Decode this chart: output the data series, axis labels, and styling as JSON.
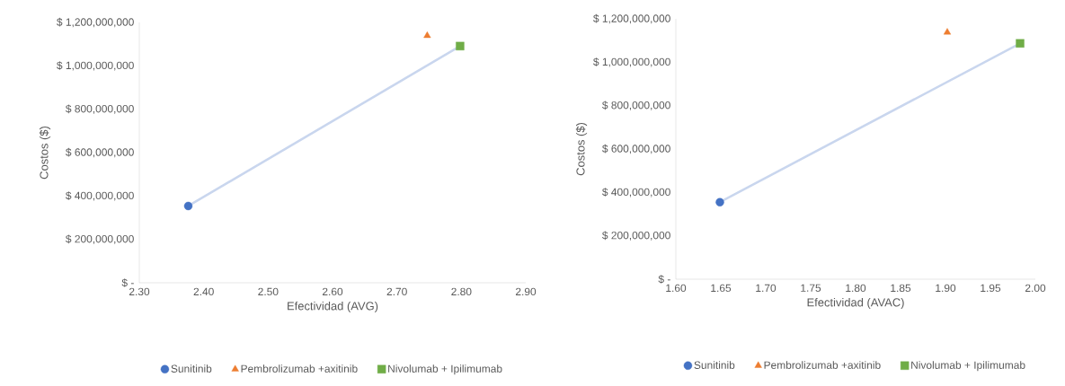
{
  "chart_data": [
    {
      "type": "scatter",
      "xlabel": "Efectividad (AVG)",
      "ylabel": "Costos ($)",
      "xlim": [
        2.3,
        2.9
      ],
      "xticks": [
        {
          "value": 2.3,
          "label": "2.30"
        },
        {
          "value": 2.4,
          "label": "2.40"
        },
        {
          "value": 2.5,
          "label": "2.50"
        },
        {
          "value": 2.6,
          "label": "2.60"
        },
        {
          "value": 2.7,
          "label": "2.70"
        },
        {
          "value": 2.8,
          "label": "2.80"
        },
        {
          "value": 2.9,
          "label": "2.90"
        }
      ],
      "ylim": [
        0,
        1200000000
      ],
      "yticks": [
        {
          "value": 0,
          "label": "$ -"
        },
        {
          "value": 200000000,
          "label": "$ 200,000,000"
        },
        {
          "value": 400000000,
          "label": "$ 400,000,000"
        },
        {
          "value": 600000000,
          "label": "$ 600,000,000"
        },
        {
          "value": 800000000,
          "label": "$ 800,000,000"
        },
        {
          "value": 1000000000,
          "label": "$ 1,000,000,000"
        },
        {
          "value": 1200000000,
          "label": "$ 1,200,000,000"
        }
      ],
      "grid": false,
      "legend": "bottom",
      "series": [
        {
          "type": "line",
          "color": "#c9d6ee",
          "x": [
            2.376,
            2.798
          ],
          "values": [
            354000000,
            1091000000
          ]
        },
        {
          "name": "Sunitinib",
          "color": "#4472c4",
          "marker": "circle",
          "x": [
            2.376
          ],
          "values": [
            354000000
          ]
        },
        {
          "name": "Pembrolizumab +axitinib",
          "color": "#ed7d31",
          "marker": "triangle",
          "x": [
            2.747
          ],
          "values": [
            1139000000
          ]
        },
        {
          "name": "Nivolumab + Ipilimumab",
          "color": "#70ad47",
          "marker": "square",
          "x": [
            2.798
          ],
          "values": [
            1091000000
          ]
        }
      ]
    },
    {
      "type": "scatter",
      "xlabel": "Efectividad (AVAC)",
      "ylabel": "Costos ($)",
      "xlim": [
        1.6,
        2.0
      ],
      "xticks": [
        {
          "value": 1.6,
          "label": "1.60"
        },
        {
          "value": 1.65,
          "label": "1.65"
        },
        {
          "value": 1.7,
          "label": "1.70"
        },
        {
          "value": 1.75,
          "label": "1.75"
        },
        {
          "value": 1.8,
          "label": "1.80"
        },
        {
          "value": 1.85,
          "label": "1.85"
        },
        {
          "value": 1.9,
          "label": "1.90"
        },
        {
          "value": 1.95,
          "label": "1.95"
        },
        {
          "value": 2.0,
          "label": "2.00"
        }
      ],
      "ylim": [
        0,
        1200000000
      ],
      "yticks": [
        {
          "value": 0,
          "label": "$ -"
        },
        {
          "value": 200000000,
          "label": "$ 200,000,000"
        },
        {
          "value": 400000000,
          "label": "$ 400,000,000"
        },
        {
          "value": 600000000,
          "label": "$ 600,000,000"
        },
        {
          "value": 800000000,
          "label": "$ 800,000,000"
        },
        {
          "value": 1000000000,
          "label": "$ 1,000,000,000"
        },
        {
          "value": 1200000000,
          "label": "$ 1,200,000,000"
        }
      ],
      "grid": false,
      "legend": "bottom",
      "series": [
        {
          "type": "line",
          "color": "#c9d6ee",
          "x": [
            1.649,
            1.983
          ],
          "values": [
            355000000,
            1087000000
          ]
        },
        {
          "name": "Sunitinib",
          "color": "#4472c4",
          "marker": "circle",
          "x": [
            1.649
          ],
          "values": [
            355000000
          ]
        },
        {
          "name": "Pembrolizumab +axitinib",
          "color": "#ed7d31",
          "marker": "triangle",
          "x": [
            1.902
          ],
          "values": [
            1138000000
          ]
        },
        {
          "name": "Nivolumab + Ipilimumab",
          "color": "#70ad47",
          "marker": "square",
          "x": [
            1.983
          ],
          "values": [
            1087000000
          ]
        }
      ]
    }
  ]
}
